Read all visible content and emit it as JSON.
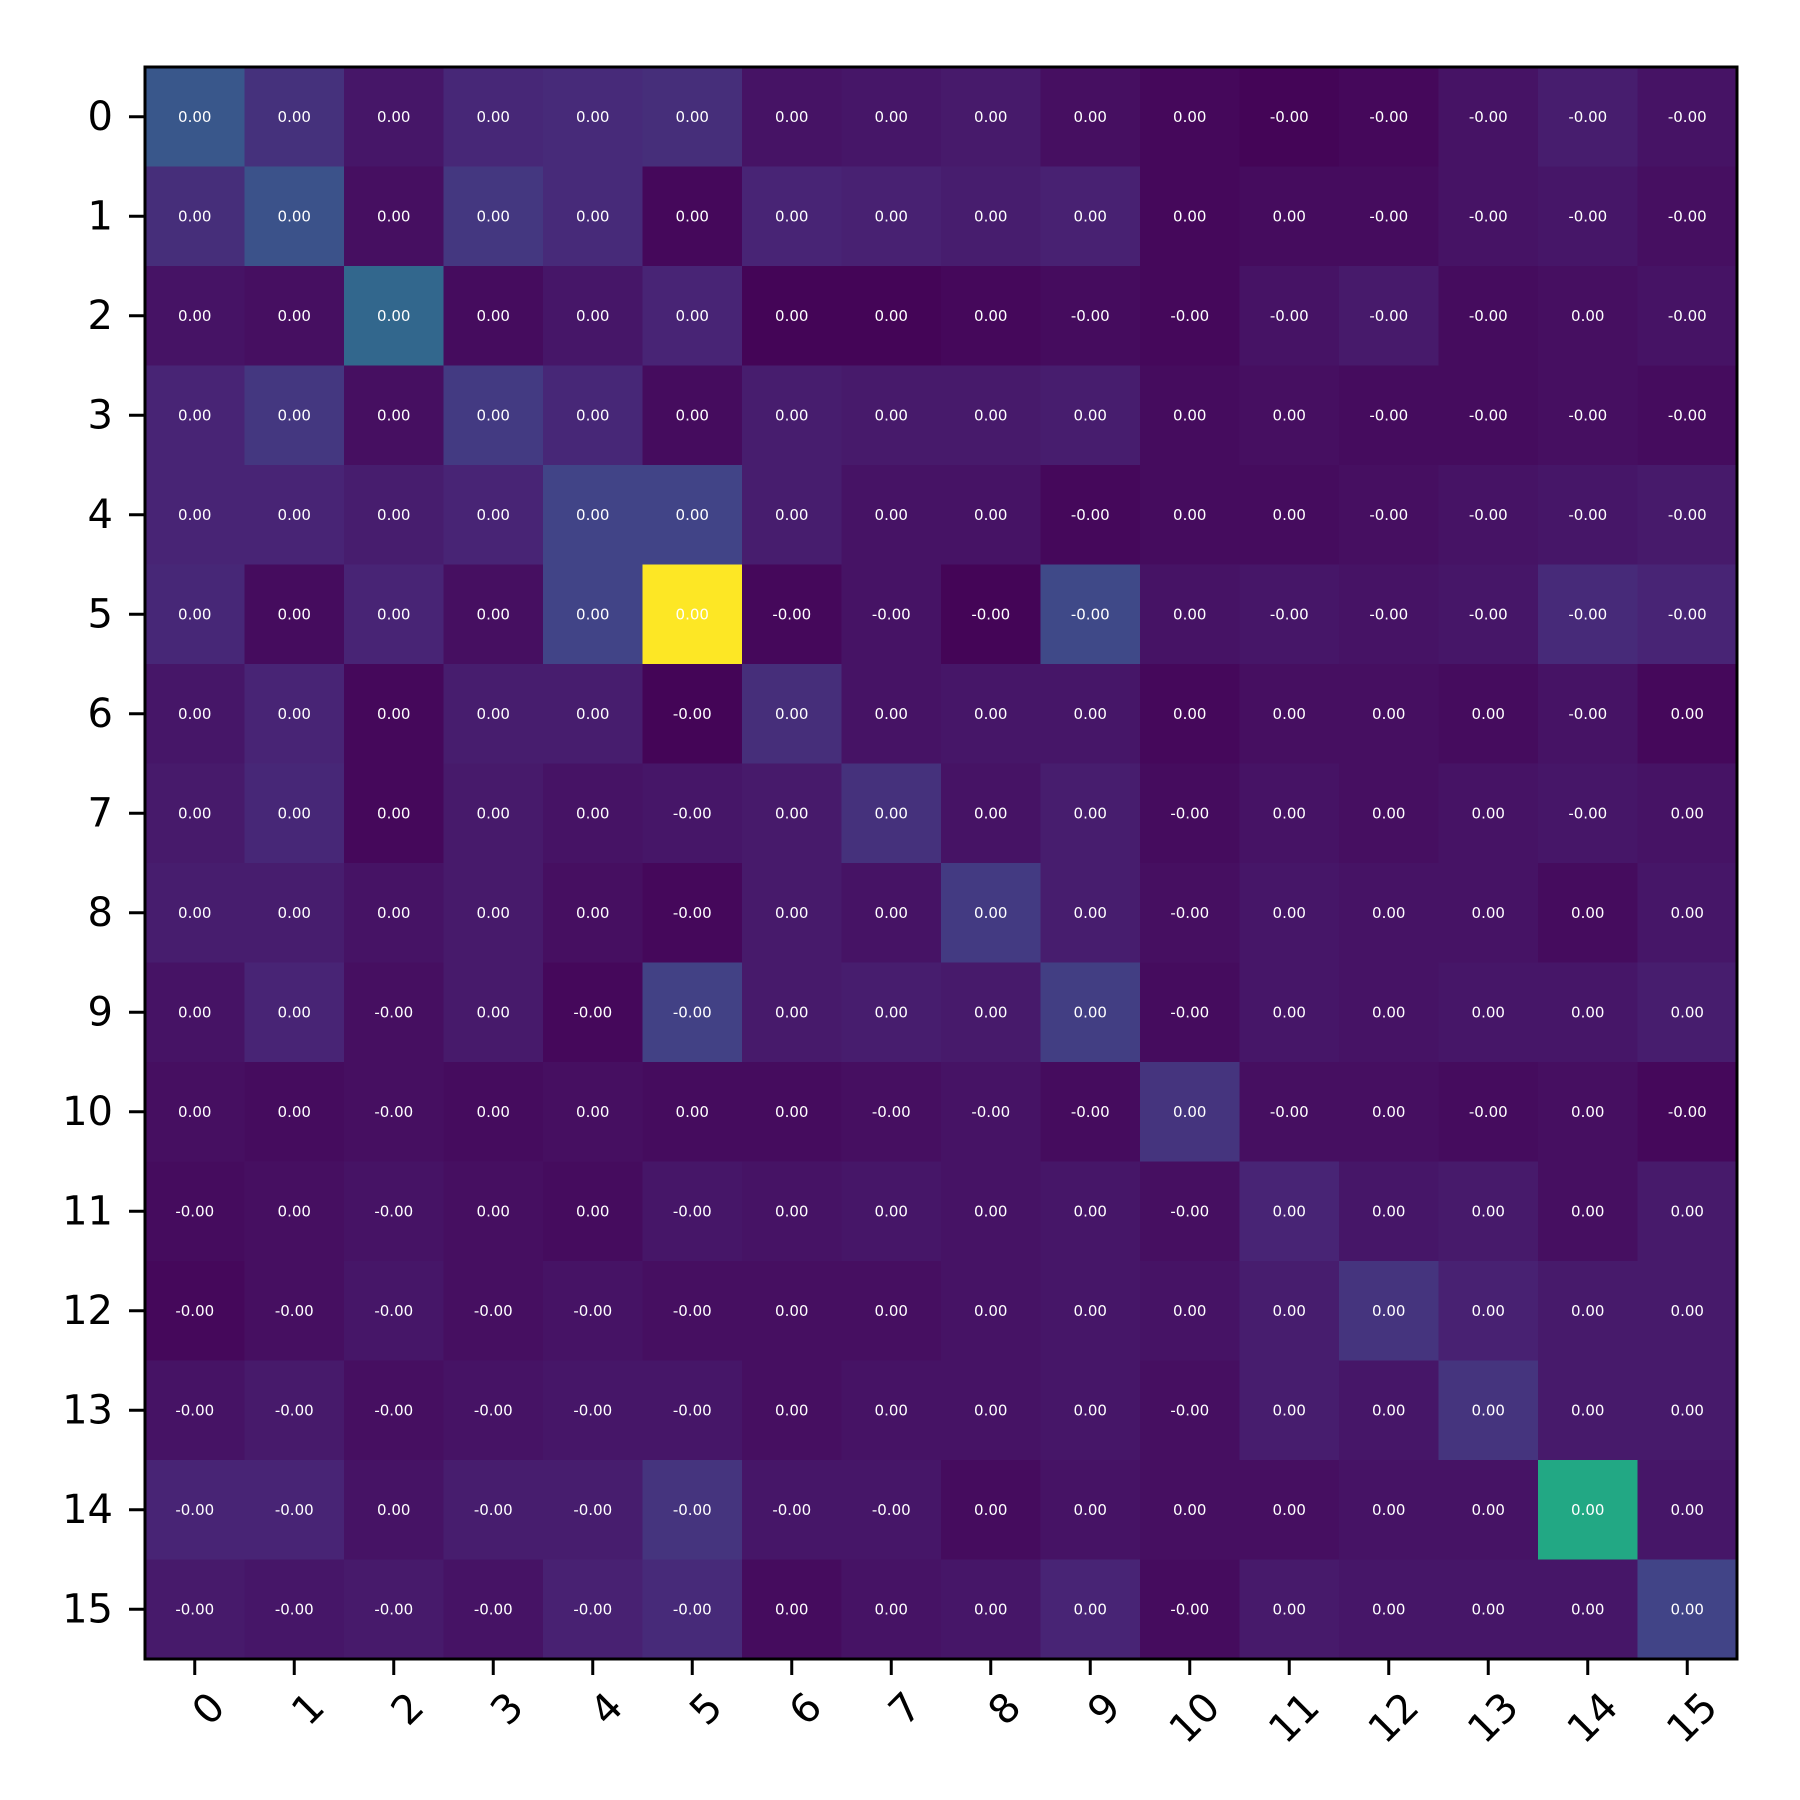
{
  "chart_data": {
    "type": "heatmap",
    "title": "",
    "xlabel": "",
    "ylabel": "",
    "colormap": "viridis",
    "x_categories": [
      "0",
      "1",
      "2",
      "3",
      "4",
      "5",
      "6",
      "7",
      "8",
      "9",
      "10",
      "11",
      "12",
      "13",
      "14",
      "15"
    ],
    "y_categories": [
      "0",
      "1",
      "2",
      "3",
      "4",
      "5",
      "6",
      "7",
      "8",
      "9",
      "10",
      "11",
      "12",
      "13",
      "14",
      "15"
    ],
    "colors": {
      "frame": "#000000",
      "cell_text": "#ffffff",
      "background": "#ffffff"
    },
    "intensity": [
      [
        0.27,
        0.14,
        0.06,
        0.11,
        0.12,
        0.13,
        0.05,
        0.06,
        0.07,
        0.04,
        0.02,
        0.01,
        0.02,
        0.05,
        0.08,
        0.05
      ],
      [
        0.13,
        0.25,
        0.04,
        0.16,
        0.12,
        0.02,
        0.1,
        0.09,
        0.08,
        0.09,
        0.02,
        0.03,
        0.03,
        0.05,
        0.06,
        0.04
      ],
      [
        0.05,
        0.04,
        0.33,
        0.03,
        0.06,
        0.1,
        0.01,
        0.01,
        0.02,
        0.03,
        0.02,
        0.05,
        0.07,
        0.03,
        0.04,
        0.05
      ],
      [
        0.1,
        0.16,
        0.04,
        0.17,
        0.11,
        0.03,
        0.08,
        0.07,
        0.07,
        0.08,
        0.03,
        0.04,
        0.03,
        0.03,
        0.04,
        0.03
      ],
      [
        0.1,
        0.1,
        0.08,
        0.1,
        0.2,
        0.2,
        0.08,
        0.05,
        0.05,
        0.02,
        0.03,
        0.03,
        0.04,
        0.05,
        0.06,
        0.07
      ],
      [
        0.11,
        0.03,
        0.1,
        0.04,
        0.2,
        1.0,
        0.02,
        0.05,
        0.01,
        0.22,
        0.05,
        0.06,
        0.05,
        0.06,
        0.12,
        0.1
      ],
      [
        0.06,
        0.1,
        0.02,
        0.08,
        0.08,
        0.01,
        0.13,
        0.05,
        0.06,
        0.06,
        0.02,
        0.04,
        0.04,
        0.03,
        0.05,
        0.02
      ],
      [
        0.07,
        0.11,
        0.02,
        0.07,
        0.05,
        0.06,
        0.07,
        0.14,
        0.05,
        0.08,
        0.03,
        0.05,
        0.04,
        0.05,
        0.06,
        0.05
      ],
      [
        0.08,
        0.08,
        0.05,
        0.07,
        0.04,
        0.02,
        0.07,
        0.05,
        0.17,
        0.08,
        0.04,
        0.06,
        0.05,
        0.05,
        0.03,
        0.06
      ],
      [
        0.05,
        0.1,
        0.04,
        0.07,
        0.02,
        0.19,
        0.07,
        0.08,
        0.07,
        0.18,
        0.03,
        0.06,
        0.05,
        0.06,
        0.06,
        0.08
      ],
      [
        0.04,
        0.03,
        0.04,
        0.03,
        0.04,
        0.03,
        0.03,
        0.04,
        0.05,
        0.03,
        0.15,
        0.04,
        0.04,
        0.03,
        0.04,
        0.02
      ],
      [
        0.03,
        0.04,
        0.05,
        0.04,
        0.03,
        0.06,
        0.05,
        0.06,
        0.05,
        0.06,
        0.04,
        0.1,
        0.06,
        0.07,
        0.04,
        0.07
      ],
      [
        0.02,
        0.04,
        0.06,
        0.04,
        0.05,
        0.04,
        0.04,
        0.04,
        0.05,
        0.06,
        0.05,
        0.08,
        0.15,
        0.09,
        0.07,
        0.07
      ],
      [
        0.05,
        0.07,
        0.04,
        0.05,
        0.06,
        0.06,
        0.04,
        0.05,
        0.05,
        0.06,
        0.04,
        0.08,
        0.06,
        0.15,
        0.07,
        0.07
      ],
      [
        0.1,
        0.1,
        0.05,
        0.08,
        0.08,
        0.15,
        0.06,
        0.06,
        0.03,
        0.05,
        0.04,
        0.04,
        0.05,
        0.05,
        0.6,
        0.06
      ],
      [
        0.07,
        0.06,
        0.07,
        0.05,
        0.09,
        0.12,
        0.03,
        0.05,
        0.06,
        0.1,
        0.03,
        0.07,
        0.06,
        0.06,
        0.06,
        0.2
      ]
    ],
    "cell_labels": [
      [
        "0.00",
        "0.00",
        "0.00",
        "0.00",
        "0.00",
        "0.00",
        "0.00",
        "0.00",
        "0.00",
        "0.00",
        "0.00",
        "-0.00",
        "-0.00",
        "-0.00",
        "-0.00",
        "-0.00"
      ],
      [
        "0.00",
        "0.00",
        "0.00",
        "0.00",
        "0.00",
        "0.00",
        "0.00",
        "0.00",
        "0.00",
        "0.00",
        "0.00",
        "0.00",
        "-0.00",
        "-0.00",
        "-0.00",
        "-0.00"
      ],
      [
        "0.00",
        "0.00",
        "0.00",
        "0.00",
        "0.00",
        "0.00",
        "0.00",
        "0.00",
        "0.00",
        "-0.00",
        "-0.00",
        "-0.00",
        "-0.00",
        "-0.00",
        "0.00",
        "-0.00"
      ],
      [
        "0.00",
        "0.00",
        "0.00",
        "0.00",
        "0.00",
        "0.00",
        "0.00",
        "0.00",
        "0.00",
        "0.00",
        "0.00",
        "0.00",
        "-0.00",
        "-0.00",
        "-0.00",
        "-0.00"
      ],
      [
        "0.00",
        "0.00",
        "0.00",
        "0.00",
        "0.00",
        "0.00",
        "0.00",
        "0.00",
        "0.00",
        "-0.00",
        "0.00",
        "0.00",
        "-0.00",
        "-0.00",
        "-0.00",
        "-0.00"
      ],
      [
        "0.00",
        "0.00",
        "0.00",
        "0.00",
        "0.00",
        "0.00",
        "-0.00",
        "-0.00",
        "-0.00",
        "-0.00",
        "0.00",
        "-0.00",
        "-0.00",
        "-0.00",
        "-0.00",
        "-0.00"
      ],
      [
        "0.00",
        "0.00",
        "0.00",
        "0.00",
        "0.00",
        "-0.00",
        "0.00",
        "0.00",
        "0.00",
        "0.00",
        "0.00",
        "0.00",
        "0.00",
        "0.00",
        "-0.00",
        "0.00"
      ],
      [
        "0.00",
        "0.00",
        "0.00",
        "0.00",
        "0.00",
        "-0.00",
        "0.00",
        "0.00",
        "0.00",
        "0.00",
        "-0.00",
        "0.00",
        "0.00",
        "0.00",
        "-0.00",
        "0.00"
      ],
      [
        "0.00",
        "0.00",
        "0.00",
        "0.00",
        "0.00",
        "-0.00",
        "0.00",
        "0.00",
        "0.00",
        "0.00",
        "-0.00",
        "0.00",
        "0.00",
        "0.00",
        "0.00",
        "0.00"
      ],
      [
        "0.00",
        "0.00",
        "-0.00",
        "0.00",
        "-0.00",
        "-0.00",
        "0.00",
        "0.00",
        "0.00",
        "0.00",
        "-0.00",
        "0.00",
        "0.00",
        "0.00",
        "0.00",
        "0.00"
      ],
      [
        "0.00",
        "0.00",
        "-0.00",
        "0.00",
        "0.00",
        "0.00",
        "0.00",
        "-0.00",
        "-0.00",
        "-0.00",
        "0.00",
        "-0.00",
        "0.00",
        "-0.00",
        "0.00",
        "-0.00"
      ],
      [
        "-0.00",
        "0.00",
        "-0.00",
        "0.00",
        "0.00",
        "-0.00",
        "0.00",
        "0.00",
        "0.00",
        "0.00",
        "-0.00",
        "0.00",
        "0.00",
        "0.00",
        "0.00",
        "0.00"
      ],
      [
        "-0.00",
        "-0.00",
        "-0.00",
        "-0.00",
        "-0.00",
        "-0.00",
        "0.00",
        "0.00",
        "0.00",
        "0.00",
        "0.00",
        "0.00",
        "0.00",
        "0.00",
        "0.00",
        "0.00"
      ],
      [
        "-0.00",
        "-0.00",
        "-0.00",
        "-0.00",
        "-0.00",
        "-0.00",
        "0.00",
        "0.00",
        "0.00",
        "0.00",
        "-0.00",
        "0.00",
        "0.00",
        "0.00",
        "0.00",
        "0.00"
      ],
      [
        "-0.00",
        "-0.00",
        "0.00",
        "-0.00",
        "-0.00",
        "-0.00",
        "-0.00",
        "-0.00",
        "0.00",
        "0.00",
        "0.00",
        "0.00",
        "0.00",
        "0.00",
        "0.00",
        "0.00"
      ],
      [
        "-0.00",
        "-0.00",
        "-0.00",
        "-0.00",
        "-0.00",
        "-0.00",
        "0.00",
        "0.00",
        "0.00",
        "0.00",
        "-0.00",
        "0.00",
        "0.00",
        "0.00",
        "0.00",
        "0.00"
      ]
    ]
  }
}
